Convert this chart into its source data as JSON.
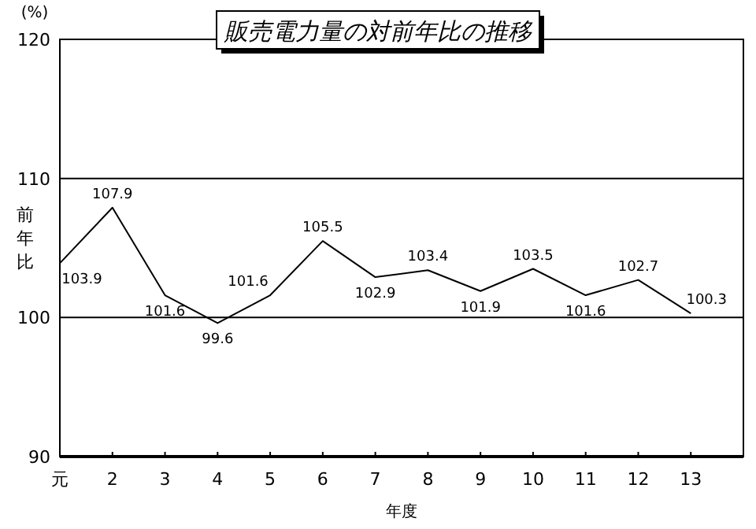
{
  "chart_data": {
    "type": "line",
    "title": "販売電力量の対前年比の推移",
    "xlabel": "年度",
    "ylabel": "前年比",
    "annotations": [
      "(%)"
    ],
    "categories": [
      "元",
      "2",
      "3",
      "4",
      "5",
      "6",
      "7",
      "8",
      "9",
      "10",
      "11",
      "12",
      "13",
      null
    ],
    "series": [
      {
        "color": "#000000",
        "values": [
          103.9,
          107.9,
          101.6,
          99.6,
          101.6,
          105.5,
          102.9,
          103.4,
          101.9,
          103.5,
          101.6,
          102.7,
          100.3,
          null
        ]
      }
    ],
    "ylim": [
      90,
      120
    ],
    "yticks": [
      90,
      100,
      110,
      120
    ],
    "grid": "y",
    "data_labels": true,
    "marker": "none",
    "line_style": "solid"
  }
}
